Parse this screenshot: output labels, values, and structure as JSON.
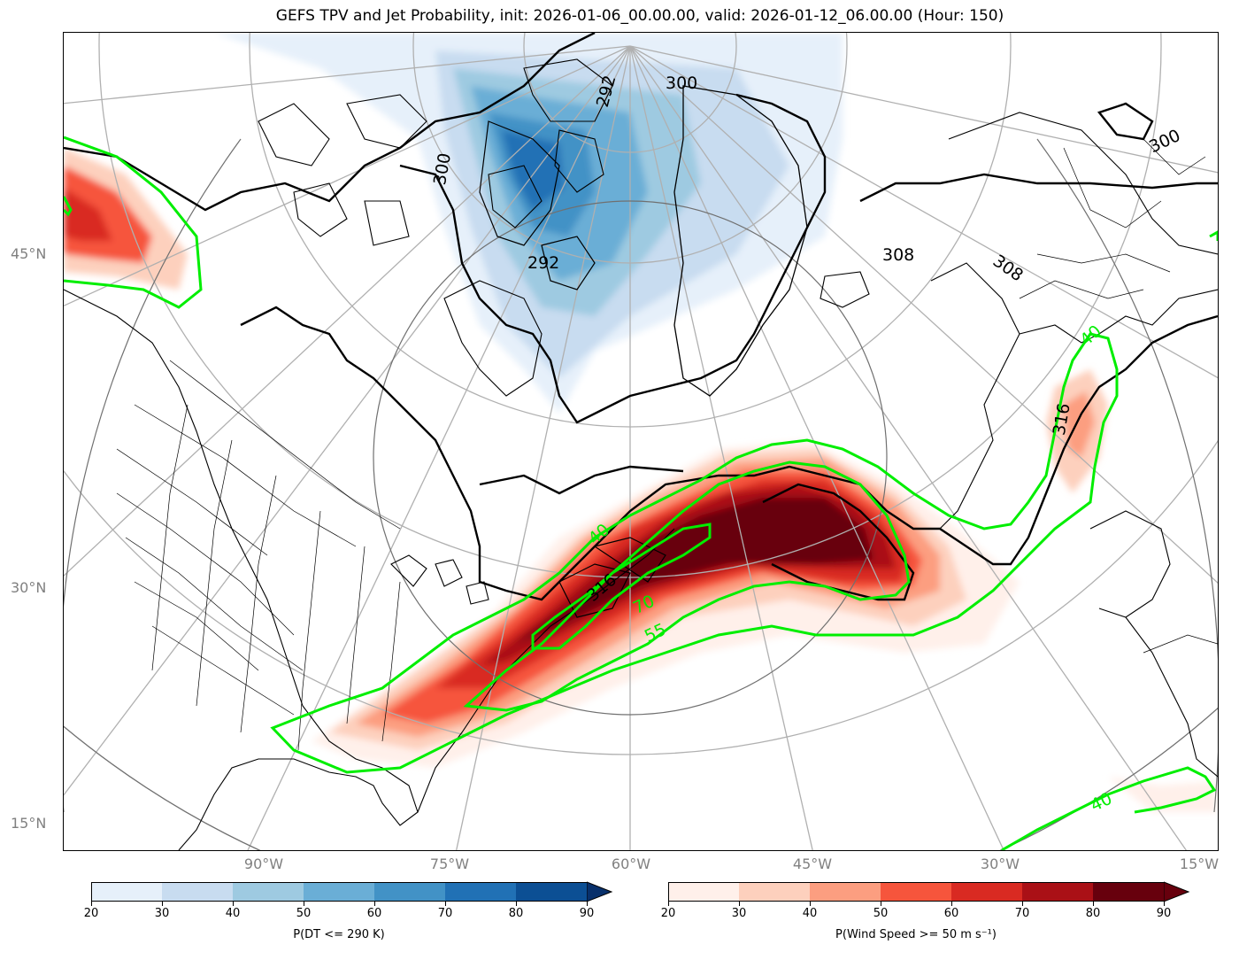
{
  "title": "GEFS TPV and Jet Probability, init: 2026-01-06_00.00.00, valid: 2026-01-12_06.00.00 (Hour: 150)",
  "lat_labels": [
    "45°N",
    "30°N",
    "15°N"
  ],
  "lon_labels": [
    "90°W",
    "75°W",
    "60°W",
    "45°W",
    "30°W",
    "15°W"
  ],
  "contour_labels": {
    "theta_black": [
      "300",
      "292",
      "300",
      "292",
      "308",
      "308",
      "300",
      "316",
      "316"
    ],
    "jet_green": [
      "40",
      "70",
      "55",
      "40",
      "40"
    ]
  },
  "colorbar_dt": {
    "label": "P(DT <= 290 K)",
    "ticks": [
      "20",
      "30",
      "40",
      "50",
      "60",
      "70",
      "80",
      "90"
    ],
    "colors": [
      "#e6f0fa",
      "#c8dcf0",
      "#9ecae1",
      "#6aaed6",
      "#4292c6",
      "#2171b5",
      "#0c4f94"
    ],
    "extend_color": "#08306b"
  },
  "colorbar_wind": {
    "label": "P(Wind Speed >= 50 m s⁻¹)",
    "ticks": [
      "20",
      "30",
      "40",
      "50",
      "60",
      "70",
      "80",
      "90"
    ],
    "colors": [
      "#fff0ea",
      "#fdd0bd",
      "#fc9e80",
      "#f6553c",
      "#d92a22",
      "#aa1016",
      "#67000d"
    ],
    "extend_color": "#67000d"
  },
  "colors": {
    "jet_contour": "#00ee00",
    "theta_contour": "#000000",
    "graticule": "#b0b0b0",
    "tick_label": "#808080"
  }
}
